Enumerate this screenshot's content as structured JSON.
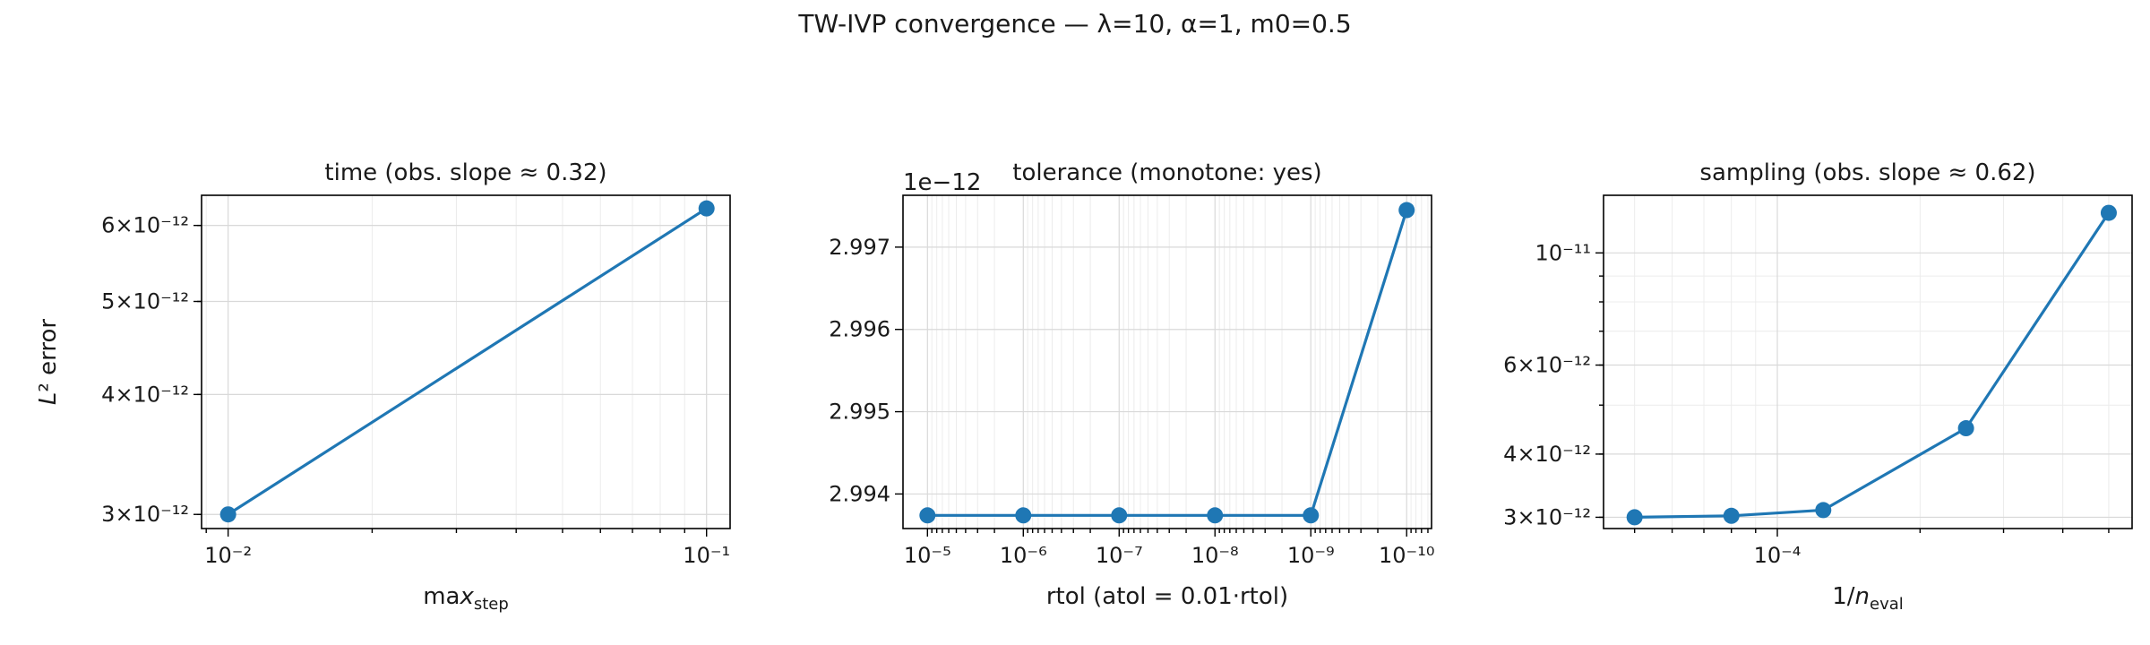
{
  "figure": {
    "suptitle": "TW-IVP convergence — λ=10, α=1, m0=0.5"
  },
  "colors": {
    "series": "#1f77b4"
  },
  "chart_data": [
    {
      "type": "line",
      "title": "time (obs. slope ≈ 0.32)",
      "xlabel": "max_step",
      "ylabel": "L² error",
      "xscale": "log",
      "yscale": "log",
      "xlim": [
        0.0088,
        0.112
      ],
      "ylim": [
        2.9e-12,
        6.45e-12
      ],
      "grid": true,
      "x": [
        0.01,
        0.1
      ],
      "y": [
        3e-12,
        6.25e-12
      ],
      "xticks": [
        {
          "value": 0.01,
          "label": "10⁻²"
        },
        {
          "value": 0.1,
          "label": "10⁻¹"
        }
      ],
      "yticks": [
        {
          "value": 3e-12,
          "label": "3×10⁻¹²"
        },
        {
          "value": 4e-12,
          "label": "4×10⁻¹²"
        },
        {
          "value": 5e-12,
          "label": "5×10⁻¹²"
        },
        {
          "value": 6e-12,
          "label": "6×10⁻¹²"
        }
      ]
    },
    {
      "type": "line",
      "title": "tolerance (monotone: yes)",
      "xlabel": "rtol (atol = 0.01·rtol)",
      "ylabel": "",
      "xscale": "log",
      "xinverted": true,
      "yscale": "linear",
      "offset_text": "1e−12",
      "xlim": [
        1.8e-05,
        5.5e-11
      ],
      "ylim": [
        2.99358,
        2.99763
      ],
      "grid": true,
      "x": [
        1e-05,
        1e-06,
        1e-07,
        1e-08,
        1e-09,
        1e-10
      ],
      "y": [
        2.99374,
        2.99374,
        2.99374,
        2.99374,
        2.99374,
        2.99745
      ],
      "xticks": [
        {
          "value": 1e-05,
          "label": "10⁻⁵"
        },
        {
          "value": 1e-06,
          "label": "10⁻⁶"
        },
        {
          "value": 1e-07,
          "label": "10⁻⁷"
        },
        {
          "value": 1e-08,
          "label": "10⁻⁸"
        },
        {
          "value": 1e-09,
          "label": "10⁻⁹"
        },
        {
          "value": 1e-10,
          "label": "10⁻¹⁰"
        }
      ],
      "yticks": [
        {
          "value": 2.994,
          "label": "2.994"
        },
        {
          "value": 2.995,
          "label": "2.995"
        },
        {
          "value": 2.996,
          "label": "2.996"
        },
        {
          "value": 2.997,
          "label": "2.997"
        }
      ]
    },
    {
      "type": "line",
      "title": "sampling (obs. slope ≈ 0.62)",
      "xlabel": "1/n_eval",
      "ylabel": "",
      "xscale": "log",
      "yscale": "log",
      "xlim": [
        4.3e-05,
        0.00056
      ],
      "ylim": [
        2.85e-12,
        1.3e-11
      ],
      "grid": true,
      "x": [
        5e-05,
        8e-05,
        0.000125,
        0.00025,
        0.0005
      ],
      "y": [
        3e-12,
        3.02e-12,
        3.1e-12,
        4.5e-12,
        1.2e-11
      ],
      "xticks": [
        {
          "value": 0.0001,
          "label": "10⁻⁴"
        }
      ],
      "yticks": [
        {
          "value": 3e-12,
          "label": "3×10⁻¹²"
        },
        {
          "value": 4e-12,
          "label": "4×10⁻¹²"
        },
        {
          "value": 6e-12,
          "label": "6×10⁻¹²"
        },
        {
          "value": 1e-11,
          "label": "10⁻¹¹"
        }
      ]
    }
  ]
}
